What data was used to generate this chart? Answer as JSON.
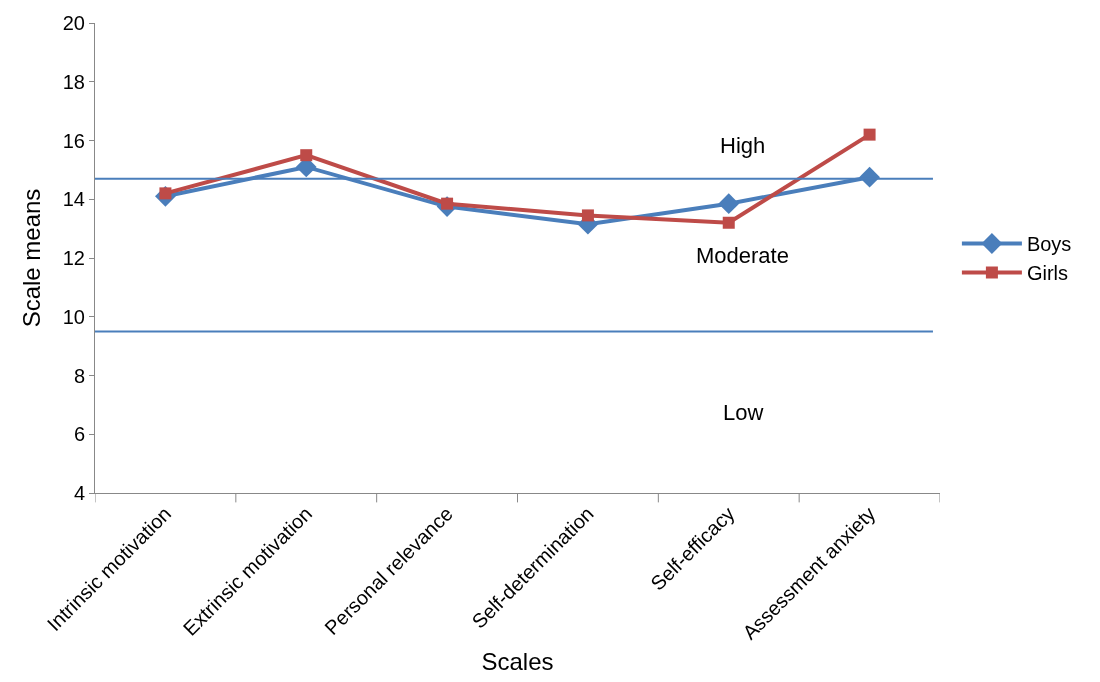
{
  "chart_data": {
    "type": "line",
    "xlabel": "Scales",
    "ylabel": "Scale means",
    "categories": [
      "Intrinsic motivation",
      "Extrinsic motivation",
      "Personal relevance",
      "Self-determination",
      "Self-efficacy",
      "Assessment anxiety"
    ],
    "series": [
      {
        "name": "Boys",
        "color": "#4a7ebb",
        "marker": "diamond",
        "values": [
          14.1,
          15.1,
          13.75,
          13.15,
          13.85,
          14.75
        ]
      },
      {
        "name": "Girls",
        "color": "#be4b48",
        "marker": "square",
        "values": [
          14.2,
          15.5,
          13.85,
          13.45,
          13.2,
          16.2
        ]
      }
    ],
    "ylim": [
      4,
      20
    ],
    "yticks": [
      4,
      6,
      8,
      10,
      12,
      14,
      16,
      18,
      20
    ],
    "ref_lines": [
      {
        "axis": "y",
        "value": 14.7,
        "color": "#4a7ebb"
      },
      {
        "axis": "y",
        "value": 9.5,
        "color": "#4a7ebb"
      }
    ],
    "annotations": [
      "High",
      "Moderate",
      "Low"
    ],
    "legend": "right",
    "line_style": "solid"
  }
}
